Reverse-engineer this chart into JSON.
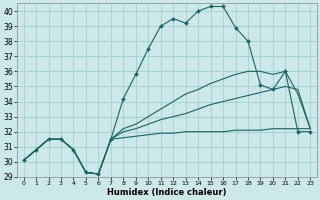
{
  "xlabel": "Humidex (Indice chaleur)",
  "bg_color": "#cce8e8",
  "grid_color": "#99cccc",
  "line_color": "#1a6464",
  "xlim_min": -0.5,
  "xlim_max": 23.5,
  "ylim_min": 29,
  "ylim_max": 40.5,
  "xticks": [
    0,
    1,
    2,
    3,
    4,
    5,
    6,
    7,
    8,
    9,
    10,
    11,
    12,
    13,
    14,
    15,
    16,
    17,
    18,
    19,
    20,
    21,
    22,
    23
  ],
  "yticks": [
    29,
    30,
    31,
    32,
    33,
    34,
    35,
    36,
    37,
    38,
    39,
    40
  ],
  "line_main_x": [
    0,
    1,
    2,
    3,
    4,
    5,
    6,
    7,
    8,
    9,
    10,
    11,
    12,
    13,
    14,
    15,
    16,
    17,
    18,
    19,
    20,
    21,
    22,
    23
  ],
  "line_main_y": [
    30.1,
    30.8,
    31.5,
    31.5,
    30.8,
    29.3,
    29.2,
    31.5,
    34.2,
    35.8,
    37.5,
    39.0,
    39.5,
    39.2,
    40.0,
    40.3,
    40.3,
    38.9,
    38.0,
    35.1,
    34.8,
    36.0,
    32.0,
    32.0
  ],
  "line_upper_x": [
    0,
    1,
    2,
    3,
    4,
    5,
    6,
    7,
    8,
    9,
    10,
    11,
    12,
    13,
    14,
    15,
    16,
    17,
    18,
    19,
    20,
    21,
    22,
    23
  ],
  "line_upper_y": [
    30.1,
    30.8,
    31.5,
    31.5,
    30.8,
    29.3,
    29.2,
    31.5,
    32.2,
    32.5,
    33.0,
    33.5,
    34.0,
    34.5,
    34.8,
    35.2,
    35.5,
    35.8,
    36.0,
    36.0,
    35.8,
    36.0,
    34.5,
    32.2
  ],
  "line_mid_x": [
    0,
    1,
    2,
    3,
    4,
    5,
    6,
    7,
    8,
    9,
    10,
    11,
    12,
    13,
    14,
    15,
    16,
    17,
    18,
    19,
    20,
    21,
    22,
    23
  ],
  "line_mid_y": [
    30.1,
    30.8,
    31.5,
    31.5,
    30.8,
    29.3,
    29.2,
    31.5,
    32.0,
    32.2,
    32.5,
    32.8,
    33.0,
    33.2,
    33.5,
    33.8,
    34.0,
    34.2,
    34.4,
    34.6,
    34.8,
    35.0,
    34.8,
    32.2
  ],
  "line_low_x": [
    0,
    1,
    2,
    3,
    4,
    5,
    6,
    7,
    8,
    9,
    10,
    11,
    12,
    13,
    14,
    15,
    16,
    17,
    18,
    19,
    20,
    21,
    22,
    23
  ],
  "line_low_y": [
    30.1,
    30.8,
    31.5,
    31.5,
    30.8,
    29.3,
    29.2,
    31.5,
    31.6,
    31.7,
    31.8,
    31.9,
    31.9,
    32.0,
    32.0,
    32.0,
    32.0,
    32.1,
    32.1,
    32.1,
    32.2,
    32.2,
    32.2,
    32.2
  ]
}
